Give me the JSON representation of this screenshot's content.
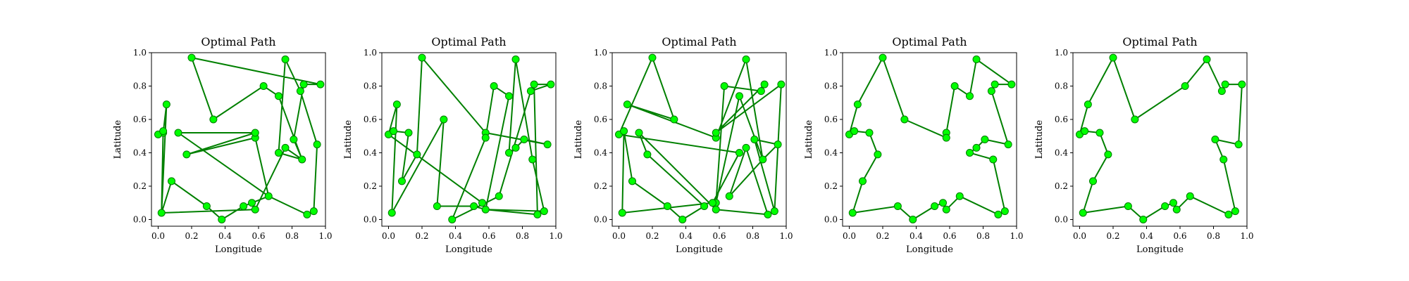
{
  "colors": {
    "line": "#008000",
    "marker_fill": "#00ff00",
    "marker_edge": "#007a00"
  },
  "chart_data": [
    {
      "type": "line",
      "title": "Optimal Path",
      "xlabel": "Longitude",
      "ylabel": "Latitude",
      "xlim": [
        -0.04,
        1.0
      ],
      "ylim": [
        -0.04,
        1.0
      ],
      "xticks": [
        "0.0",
        "0.2",
        "0.4",
        "0.6",
        "0.8",
        "1.0"
      ],
      "yticks": [
        "0.0",
        "0.2",
        "0.4",
        "0.6",
        "0.8",
        "1.0"
      ],
      "grid": false,
      "path": [
        [
          0.2,
          0.97
        ],
        [
          0.97,
          0.81
        ],
        [
          0.87,
          0.81
        ],
        [
          0.81,
          0.48
        ],
        [
          0.86,
          0.36
        ],
        [
          0.72,
          0.4
        ],
        [
          0.76,
          0.96
        ],
        [
          0.85,
          0.77
        ],
        [
          0.95,
          0.45
        ],
        [
          0.93,
          0.05
        ],
        [
          0.89,
          0.03
        ],
        [
          0.66,
          0.14
        ],
        [
          0.58,
          0.49
        ],
        [
          0.17,
          0.39
        ],
        [
          0.58,
          0.52
        ],
        [
          0.12,
          0.52
        ],
        [
          0.66,
          0.14
        ],
        [
          0.56,
          0.1
        ],
        [
          0.51,
          0.08
        ],
        [
          0.38,
          0.0
        ],
        [
          0.29,
          0.08
        ],
        [
          0.08,
          0.23
        ],
        [
          0.02,
          0.04
        ],
        [
          0.05,
          0.69
        ],
        [
          0.03,
          0.52
        ],
        [
          0.0,
          0.51
        ],
        [
          0.03,
          0.53
        ],
        [
          0.02,
          0.04
        ],
        [
          0.58,
          0.06
        ],
        [
          0.76,
          0.43
        ],
        [
          0.86,
          0.36
        ],
        [
          0.72,
          0.74
        ],
        [
          0.63,
          0.8
        ],
        [
          0.33,
          0.6
        ],
        [
          0.2,
          0.97
        ]
      ]
    },
    {
      "type": "line",
      "title": "Optimal Path",
      "xlabel": "Longitude",
      "ylabel": "Latitude",
      "xlim": [
        -0.04,
        1.0
      ],
      "ylim": [
        -0.04,
        1.0
      ],
      "xticks": [
        "0.0",
        "0.2",
        "0.4",
        "0.6",
        "0.8",
        "1.0"
      ],
      "yticks": [
        "0.0",
        "0.2",
        "0.4",
        "0.6",
        "0.8",
        "1.0"
      ],
      "grid": false,
      "path": [
        [
          0.0,
          0.51
        ],
        [
          0.03,
          0.53
        ],
        [
          0.12,
          0.52
        ],
        [
          0.08,
          0.23
        ],
        [
          0.17,
          0.39
        ],
        [
          0.2,
          0.97
        ],
        [
          0.58,
          0.52
        ],
        [
          0.95,
          0.45
        ],
        [
          0.81,
          0.48
        ],
        [
          0.76,
          0.43
        ],
        [
          0.72,
          0.4
        ],
        [
          0.76,
          0.96
        ],
        [
          0.86,
          0.36
        ],
        [
          0.93,
          0.05
        ],
        [
          0.58,
          0.06
        ],
        [
          0.89,
          0.03
        ],
        [
          0.87,
          0.81
        ],
        [
          0.97,
          0.81
        ],
        [
          0.85,
          0.77
        ],
        [
          0.66,
          0.14
        ],
        [
          0.38,
          0.0
        ],
        [
          0.58,
          0.49
        ],
        [
          0.63,
          0.8
        ],
        [
          0.72,
          0.74
        ],
        [
          0.58,
          0.06
        ],
        [
          0.51,
          0.08
        ],
        [
          0.29,
          0.08
        ],
        [
          0.33,
          0.6
        ],
        [
          0.02,
          0.04
        ],
        [
          0.05,
          0.69
        ],
        [
          0.0,
          0.51
        ],
        [
          0.56,
          0.1
        ],
        [
          0.58,
          0.06
        ]
      ]
    },
    {
      "type": "line",
      "title": "Optimal Path",
      "xlabel": "Longitude",
      "ylabel": "Latitude",
      "xlim": [
        -0.04,
        1.0
      ],
      "ylim": [
        -0.04,
        1.0
      ],
      "xticks": [
        "0.0",
        "0.2",
        "0.4",
        "0.6",
        "0.8",
        "1.0"
      ],
      "yticks": [
        "0.0",
        "0.2",
        "0.4",
        "0.6",
        "0.8",
        "1.0"
      ],
      "grid": false,
      "path": [
        [
          0.0,
          0.51
        ],
        [
          0.2,
          0.97
        ],
        [
          0.33,
          0.6
        ],
        [
          0.05,
          0.69
        ],
        [
          0.58,
          0.49
        ],
        [
          0.76,
          0.96
        ],
        [
          0.86,
          0.36
        ],
        [
          0.72,
          0.74
        ],
        [
          0.58,
          0.1
        ],
        [
          0.63,
          0.8
        ],
        [
          0.85,
          0.77
        ],
        [
          0.87,
          0.81
        ],
        [
          0.58,
          0.52
        ],
        [
          0.97,
          0.81
        ],
        [
          0.93,
          0.05
        ],
        [
          0.81,
          0.48
        ],
        [
          0.95,
          0.45
        ],
        [
          0.86,
          0.36
        ],
        [
          0.66,
          0.14
        ],
        [
          0.76,
          0.43
        ],
        [
          0.89,
          0.03
        ],
        [
          0.58,
          0.06
        ],
        [
          0.12,
          0.52
        ],
        [
          0.17,
          0.39
        ],
        [
          0.51,
          0.08
        ],
        [
          0.38,
          0.0
        ],
        [
          0.29,
          0.08
        ],
        [
          0.08,
          0.23
        ],
        [
          0.03,
          0.53
        ],
        [
          0.02,
          0.04
        ],
        [
          0.56,
          0.1
        ],
        [
          0.72,
          0.4
        ],
        [
          0.0,
          0.51
        ]
      ]
    },
    {
      "type": "line",
      "title": "Optimal Path",
      "xlabel": "Longitude",
      "ylabel": "Latitude",
      "xlim": [
        -0.04,
        1.0
      ],
      "ylim": [
        -0.04,
        1.0
      ],
      "xticks": [
        "0.0",
        "0.2",
        "0.4",
        "0.6",
        "0.8",
        "1.0"
      ],
      "yticks": [
        "0.0",
        "0.2",
        "0.4",
        "0.6",
        "0.8",
        "1.0"
      ],
      "grid": false,
      "path": [
        [
          0.0,
          0.51
        ],
        [
          0.03,
          0.53
        ],
        [
          0.12,
          0.52
        ],
        [
          0.17,
          0.39
        ],
        [
          0.08,
          0.23
        ],
        [
          0.02,
          0.04
        ],
        [
          0.29,
          0.08
        ],
        [
          0.38,
          0.0
        ],
        [
          0.51,
          0.08
        ],
        [
          0.56,
          0.1
        ],
        [
          0.58,
          0.06
        ],
        [
          0.66,
          0.14
        ],
        [
          0.89,
          0.03
        ],
        [
          0.93,
          0.05
        ],
        [
          0.86,
          0.36
        ],
        [
          0.72,
          0.4
        ],
        [
          0.76,
          0.43
        ],
        [
          0.81,
          0.48
        ],
        [
          0.95,
          0.45
        ],
        [
          0.85,
          0.77
        ],
        [
          0.87,
          0.81
        ],
        [
          0.97,
          0.81
        ],
        [
          0.76,
          0.96
        ],
        [
          0.72,
          0.74
        ],
        [
          0.63,
          0.8
        ],
        [
          0.58,
          0.52
        ],
        [
          0.58,
          0.49
        ],
        [
          0.33,
          0.6
        ],
        [
          0.2,
          0.97
        ],
        [
          0.05,
          0.69
        ],
        [
          0.0,
          0.51
        ]
      ]
    },
    {
      "type": "line",
      "title": "Optimal Path",
      "xlabel": "Longitude",
      "ylabel": "Latitude",
      "xlim": [
        -0.04,
        1.0
      ],
      "ylim": [
        -0.04,
        1.0
      ],
      "xticks": [
        "0.0",
        "0.2",
        "0.4",
        "0.6",
        "0.8",
        "1.0"
      ],
      "yticks": [
        "0.0",
        "0.2",
        "0.4",
        "0.6",
        "0.8",
        "1.0"
      ],
      "grid": false,
      "path": [
        [
          0.0,
          0.51
        ],
        [
          0.03,
          0.53
        ],
        [
          0.12,
          0.52
        ],
        [
          0.17,
          0.39
        ],
        [
          0.08,
          0.23
        ],
        [
          0.02,
          0.04
        ],
        [
          0.29,
          0.08
        ],
        [
          0.38,
          0.0
        ],
        [
          0.51,
          0.08
        ],
        [
          0.56,
          0.1
        ],
        [
          0.58,
          0.06
        ],
        [
          0.66,
          0.14
        ],
        [
          0.89,
          0.03
        ],
        [
          0.93,
          0.05
        ],
        [
          0.86,
          0.36
        ],
        [
          0.81,
          0.48
        ],
        [
          0.95,
          0.45
        ],
        [
          0.97,
          0.81
        ],
        [
          0.87,
          0.81
        ],
        [
          0.85,
          0.77
        ],
        [
          0.76,
          0.96
        ],
        [
          0.63,
          0.8
        ],
        [
          0.33,
          0.6
        ],
        [
          0.2,
          0.97
        ],
        [
          0.05,
          0.69
        ],
        [
          0.0,
          0.51
        ]
      ]
    }
  ]
}
